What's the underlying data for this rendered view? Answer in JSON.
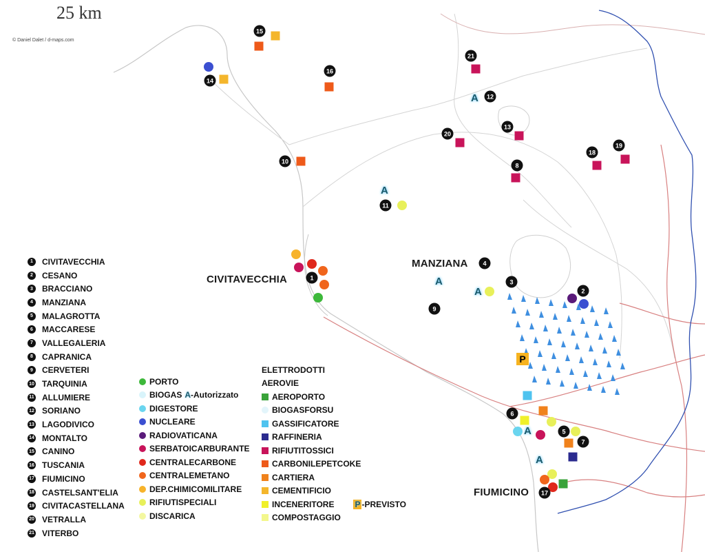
{
  "scale_label": "25 km",
  "credit": "© Daniel Dalet / d-maps.com",
  "city_labels": {
    "civitavecchia": "CIVITAVECCHIA",
    "manziana": "MANZIANA",
    "fiumicino": "FIUMICINO"
  },
  "a_mark": "A",
  "p_mark": "P",
  "towns": [
    {
      "num": "1",
      "name": "CIVITAVECCHIA"
    },
    {
      "num": "2",
      "name": "CESANO"
    },
    {
      "num": "3",
      "name": "BRACCIANO"
    },
    {
      "num": "4",
      "name": "MANZIANA"
    },
    {
      "num": "5",
      "name": "MALAGROTTA"
    },
    {
      "num": "6",
      "name": "MACCARESE"
    },
    {
      "num": "7",
      "name": "VALLEGALERIA"
    },
    {
      "num": "8",
      "name": "CAPRANICA"
    },
    {
      "num": "9",
      "name": "CERVETERI"
    },
    {
      "num": "10",
      "name": "TARQUINIA"
    },
    {
      "num": "11",
      "name": "ALLUMIERE"
    },
    {
      "num": "12",
      "name": "SORIANO"
    },
    {
      "num": "13",
      "name": "LAGODIVICO"
    },
    {
      "num": "14",
      "name": "MONTALTO"
    },
    {
      "num": "15",
      "name": "CANINO"
    },
    {
      "num": "16",
      "name": "TUSCANIA"
    },
    {
      "num": "17",
      "name": "FIUMICINO"
    },
    {
      "num": "18",
      "name": "CASTELSANT'ELIA"
    },
    {
      "num": "19",
      "name": "CIVITACASTELLANA"
    },
    {
      "num": "20",
      "name": "VETRALLA"
    },
    {
      "num": "21",
      "name": "VITERBO"
    }
  ],
  "legend_left": [
    {
      "label": "PORTO",
      "shape": "circle",
      "color": "#3db83a"
    },
    {
      "label": "BIOGAS",
      "shape": "circle",
      "color": "#d9f4fb",
      "extra_letter": "A",
      "extra_text": "-Autorizzato"
    },
    {
      "label": "DIGESTORE",
      "shape": "circle",
      "color": "#6ad5ef"
    },
    {
      "label": "NUCLEARE",
      "shape": "circle",
      "color": "#3b4fd1"
    },
    {
      "label": "RADIOVATICANA",
      "shape": "circle",
      "color": "#5a1a7a"
    },
    {
      "label": "SERBATOICARBURANTE",
      "shape": "circle",
      "color": "#c8145a"
    },
    {
      "label": "CENTRALECARBONE",
      "shape": "circle",
      "color": "#e0281c"
    },
    {
      "label": "CENTRALEMETANO",
      "shape": "circle",
      "color": "#f0651c"
    },
    {
      "label": "DEP.CHIMICOMILITARE",
      "shape": "circle",
      "color": "#f7b32b"
    },
    {
      "label": "RIFIUTISPECIALI",
      "shape": "circle",
      "color": "#e8f05a"
    },
    {
      "label": "DISCARICA",
      "shape": "circle",
      "color": "#f3f7a0"
    }
  ],
  "legend_right": [
    {
      "label": "ELETTRODOTTI",
      "shape": "none",
      "color": "#ffffff"
    },
    {
      "label": "AEROVIE",
      "shape": "none",
      "color": "#ffffff"
    },
    {
      "label": "AEROPORTO",
      "shape": "square",
      "color": "#3aa33a"
    },
    {
      "label": "BIOGASFORSU",
      "shape": "circle",
      "color": "#e3f5fb"
    },
    {
      "label": "GASSIFICATORE",
      "shape": "square",
      "color": "#4fc3ef"
    },
    {
      "label": "RAFFINERIA",
      "shape": "square",
      "color": "#2b2b8f"
    },
    {
      "label": "RIFIUTITOSSICI",
      "shape": "square",
      "color": "#c8145a"
    },
    {
      "label": "CARBONILEPETCOKE",
      "shape": "square",
      "color": "#ee5a1a"
    },
    {
      "label": "CARTIERA",
      "shape": "square",
      "color": "#f0821c"
    },
    {
      "label": "CEMENTIFICIO",
      "shape": "square",
      "color": "#f4b62c"
    },
    {
      "label": "INCENERITORE",
      "shape": "square",
      "color": "#f0f02a",
      "extra_letter": "P",
      "extra_text": "-PREVISTO"
    },
    {
      "label": "COMPOSTAGGIO",
      "shape": "square",
      "color": "#f3f78c"
    }
  ]
}
